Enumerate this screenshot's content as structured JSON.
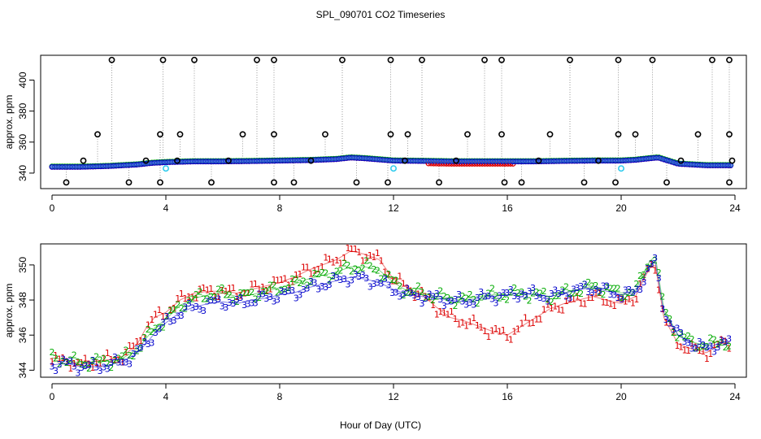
{
  "title": "SPL_090701  CO2 Timeseries",
  "xlabel": "Hour of Day (UTC)",
  "colors": {
    "s1": "#dd0000",
    "s2": "#00aa00",
    "s3": "#0000cc",
    "fill": "#3366dd",
    "flag": "#000000",
    "cal": "#33ccee",
    "drop": "#999999"
  },
  "chart_data": [
    {
      "type": "scatter",
      "panel": "top",
      "ylabel": "approx. ppm",
      "xlim": [
        -0.4,
        24.4
      ],
      "ylim": [
        330,
        416
      ],
      "xticks": [
        "0",
        "4",
        "8",
        "12",
        "16",
        "20",
        "24"
      ],
      "yticks": [
        "340",
        "360",
        "380",
        "400"
      ],
      "baseline": {
        "x": [
          0,
          1,
          2,
          3,
          3.5,
          4,
          5,
          6,
          7,
          8,
          9,
          10,
          10.5,
          11,
          12,
          13,
          14,
          15,
          16,
          17,
          18,
          19,
          20,
          20.5,
          21,
          21.3,
          22,
          23,
          24
        ],
        "y": [
          344,
          344,
          344.5,
          345.5,
          346.5,
          347,
          347.5,
          347.5,
          347.7,
          348,
          348.3,
          349,
          350,
          349.5,
          348,
          347.8,
          347.5,
          347.5,
          347.5,
          347.5,
          347.8,
          348,
          348,
          348.5,
          349.5,
          350,
          346,
          345,
          345
        ]
      },
      "low_excursions": {
        "x": [
          0.5,
          2.7,
          3.8,
          5.6,
          7.8,
          8.5,
          10.7,
          11.8,
          13.6,
          15.9,
          16.5,
          18.7,
          19.8,
          21.6,
          23.8
        ],
        "y": 334
      },
      "high_excursions": {
        "x": [
          2.1,
          3.9,
          5.0,
          7.2,
          7.8,
          10.2,
          11.9,
          13.0,
          15.2,
          15.8,
          18.2,
          19.9,
          21.1,
          23.2,
          23.8
        ],
        "y": 413
      },
      "mid_excursions": {
        "x": [
          1.6,
          3.8,
          4.5,
          6.7,
          7.8,
          9.6,
          11.9,
          12.5,
          14.6,
          15.8,
          17.5,
          19.9,
          20.5,
          22.7,
          23.8
        ],
        "y": 365
      },
      "minor_excursions": {
        "x": [
          1.1,
          3.3,
          4.4,
          6.2,
          9.1,
          12.4,
          14.2,
          17.1,
          19.2,
          22.1,
          23.9
        ],
        "y": 348
      },
      "calibration_points": {
        "x": [
          4.0,
          12.0,
          20.0
        ],
        "y": 343
      }
    },
    {
      "type": "line",
      "panel": "bottom",
      "ylabel": "approx. ppm",
      "xlim": [
        -0.4,
        24.4
      ],
      "ylim": [
        343.6,
        351.2
      ],
      "xticks": [
        "0",
        "4",
        "8",
        "12",
        "16",
        "20",
        "24"
      ],
      "yticks": [
        "344",
        "346",
        "348",
        "350"
      ],
      "series": [
        {
          "name": "1",
          "x": [
            0,
            0.5,
            1,
            1.5,
            2,
            2.5,
            3,
            3.3,
            3.6,
            4,
            4.5,
            5,
            5.5,
            6,
            6.5,
            7,
            7.5,
            8,
            8.5,
            9,
            9.5,
            10,
            10.5,
            11,
            11.5,
            12,
            12.5,
            13,
            13.5,
            14,
            14.5,
            15,
            15.5,
            16,
            16.5,
            17,
            17.5,
            18,
            18.5,
            19,
            19.5,
            20,
            20.5,
            20.8,
            21,
            21.2,
            21.5,
            22,
            22.5,
            23,
            23.5,
            23.8
          ],
          "y": [
            344.5,
            344.6,
            344.3,
            344.5,
            344.6,
            344.8,
            345.5,
            346.4,
            347,
            347.3,
            348.0,
            348.4,
            348.5,
            348.5,
            348.4,
            348.6,
            348.8,
            349.0,
            349.3,
            349.7,
            350.0,
            350.3,
            350.8,
            350.6,
            350.3,
            349.2,
            348.7,
            348.3,
            347.6,
            347.0,
            346.8,
            346.5,
            346.2,
            346.0,
            346.5,
            347.0,
            347.5,
            347.8,
            348.0,
            348.2,
            348.0,
            347.8,
            348.2,
            349.2,
            349.8,
            350.0,
            347.0,
            345.5,
            345.2,
            345.0,
            345.5,
            345.6
          ]
        },
        {
          "name": "2",
          "x": [
            0,
            0.5,
            1,
            1.5,
            2,
            2.5,
            3,
            3.3,
            3.6,
            4,
            4.5,
            5,
            5.5,
            6,
            6.5,
            7,
            7.5,
            8,
            8.5,
            9,
            9.5,
            10,
            10.5,
            11,
            11.5,
            12,
            12.5,
            13,
            13.5,
            14,
            14.5,
            15,
            15.5,
            16,
            16.5,
            17,
            17.5,
            18,
            18.5,
            19,
            19.5,
            20,
            20.5,
            20.8,
            21,
            21.2,
            21.5,
            22,
            22.5,
            23,
            23.5,
            23.8
          ],
          "y": [
            344.7,
            344.6,
            344.4,
            344.5,
            344.5,
            344.7,
            345.2,
            345.8,
            346.4,
            346.9,
            347.7,
            348.1,
            348.3,
            348.4,
            348.2,
            348.3,
            348.5,
            348.7,
            348.9,
            349.2,
            349.4,
            349.6,
            349.9,
            349.9,
            349.7,
            349.0,
            348.5,
            348.4,
            348.2,
            348.1,
            348.0,
            348.2,
            348.3,
            348.3,
            348.4,
            348.3,
            348.2,
            348.4,
            348.6,
            348.8,
            348.6,
            348.4,
            348.5,
            349.6,
            350.2,
            350.5,
            347.5,
            346.0,
            345.6,
            345.4,
            345.7,
            345.5
          ]
        },
        {
          "name": "3",
          "x": [
            0,
            0.5,
            1,
            1.5,
            2,
            2.5,
            3,
            3.3,
            3.6,
            4,
            4.5,
            5,
            5.5,
            6,
            6.5,
            7,
            7.5,
            8,
            8.5,
            9,
            9.5,
            10,
            10.5,
            11,
            11.5,
            12,
            12.5,
            13,
            13.5,
            14,
            14.5,
            15,
            15.5,
            16,
            16.5,
            17,
            17.5,
            18,
            18.5,
            19,
            19.5,
            20,
            20.5,
            20.8,
            21,
            21.2,
            21.5,
            22,
            22.5,
            23,
            23.5,
            23.8
          ],
          "y": [
            344.3,
            344.4,
            344.2,
            344.2,
            344.3,
            344.5,
            345.0,
            345.5,
            346.1,
            346.7,
            347.3,
            347.6,
            347.8,
            347.9,
            347.8,
            348.0,
            348.1,
            348.3,
            348.4,
            348.7,
            348.9,
            349.1,
            349.3,
            349.2,
            349.0,
            348.6,
            348.3,
            348.2,
            348.1,
            348.0,
            347.9,
            348.1,
            348.2,
            348.3,
            348.4,
            348.3,
            348.2,
            348.4,
            348.6,
            348.7,
            348.5,
            348.3,
            348.4,
            349.3,
            349.9,
            350.2,
            347.3,
            346.0,
            345.5,
            345.2,
            345.6,
            345.5
          ]
        }
      ]
    }
  ]
}
